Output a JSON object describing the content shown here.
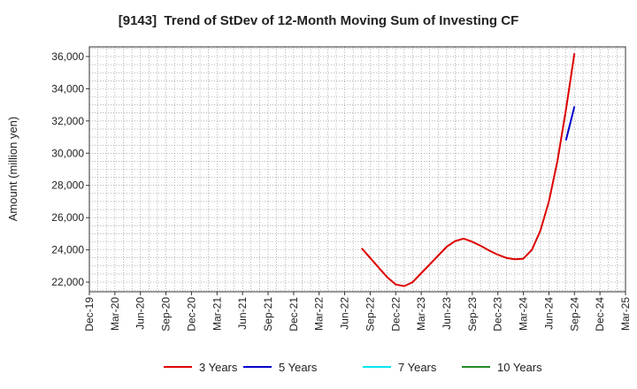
{
  "chart_data": {
    "type": "line",
    "title": "[9143]  Trend of StDev of 12-Month Moving Sum of Investing CF",
    "ylabel": "Amount (million yen)",
    "xlabel": "",
    "x_ticks": [
      "Dec-19",
      "Mar-20",
      "Jun-20",
      "Sep-20",
      "Dec-20",
      "Mar-21",
      "Jun-21",
      "Sep-21",
      "Dec-21",
      "Mar-22",
      "Jun-22",
      "Sep-22",
      "Dec-22",
      "Mar-23",
      "Jun-23",
      "Sep-23",
      "Dec-23",
      "Mar-24",
      "Jun-24",
      "Sep-24",
      "Dec-24",
      "Mar-25"
    ],
    "xlim": [
      "2019-12",
      "2025-03"
    ],
    "y_ticks": [
      22000,
      24000,
      26000,
      28000,
      30000,
      32000,
      34000,
      36000
    ],
    "y_tick_labels": [
      "22,000",
      "24,000",
      "26,000",
      "28,000",
      "30,000",
      "32,000",
      "34,000",
      "36,000"
    ],
    "ylim": [
      21400,
      36600
    ],
    "grid": true,
    "legend_position": "bottom",
    "series": [
      {
        "name": "3 Years",
        "color": "#dd0000",
        "x": [
          "2022-08",
          "2022-09",
          "2022-10",
          "2022-11",
          "2022-12",
          "2023-01",
          "2023-02",
          "2023-03",
          "2023-04",
          "2023-05",
          "2023-06",
          "2023-07",
          "2023-08",
          "2023-09",
          "2023-10",
          "2023-11",
          "2023-12",
          "2024-01",
          "2024-02",
          "2024-03",
          "2024-04",
          "2024-05",
          "2024-06",
          "2024-07",
          "2024-08",
          "2024-09"
        ],
        "values": [
          24100,
          23500,
          22900,
          22300,
          21850,
          21750,
          22000,
          22550,
          23100,
          23650,
          24200,
          24550,
          24700,
          24500,
          24250,
          23950,
          23700,
          23500,
          23420,
          23450,
          24000,
          25200,
          27000,
          29500,
          32700,
          36200
        ]
      },
      {
        "name": "5 Years",
        "color": "#0000cc",
        "x": [
          "2024-08",
          "2024-09"
        ],
        "values": [
          30800,
          32900
        ]
      },
      {
        "name": "7 Years",
        "color": "#00e5ee",
        "x": [],
        "values": []
      },
      {
        "name": "10 Years",
        "color": "#228b22",
        "x": [],
        "values": []
      }
    ]
  }
}
